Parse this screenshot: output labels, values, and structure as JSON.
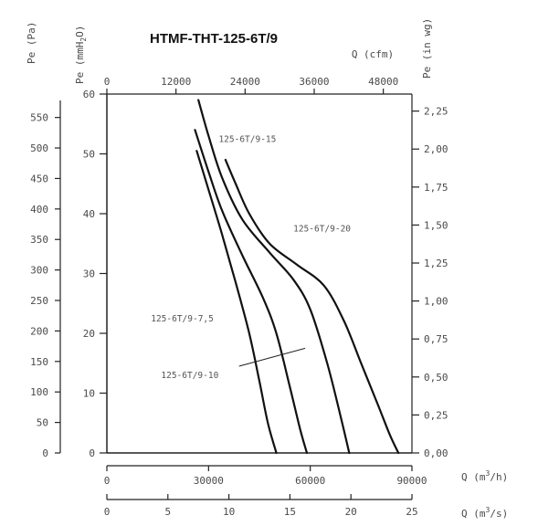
{
  "chart_data": {
    "type": "line",
    "title": "HTMF-THT-125-6T/9",
    "axes": {
      "q_cfm": {
        "label": "Q (cfm)",
        "range": [
          0,
          52972
        ],
        "ticks": [
          0,
          12000,
          24000,
          36000,
          48000
        ],
        "tick_labels": [
          "0",
          "12000",
          "24000",
          "36000",
          "48000"
        ]
      },
      "q_m3h": {
        "label": "Q (m3/h)",
        "label_base": "Q (m",
        "label_sup": "3",
        "label_end": "/h)",
        "range": [
          0,
          90000
        ],
        "ticks": [
          0,
          30000,
          60000,
          90000
        ],
        "tick_labels": [
          "0",
          "30000",
          "60000",
          "90000"
        ]
      },
      "q_m3s": {
        "label": "Q (m3/s)",
        "label_base": "Q (m",
        "label_sup": "3",
        "label_end": "/s)",
        "range": [
          0,
          25
        ],
        "ticks": [
          0,
          5,
          10,
          15,
          20,
          25
        ],
        "tick_labels": [
          "0",
          "5",
          "10",
          "15",
          "20",
          "25"
        ]
      },
      "pe_pa": {
        "label": "Pe (Pa)",
        "range": [
          0,
          588.4
        ],
        "ticks": [
          0,
          50,
          100,
          150,
          200,
          250,
          300,
          350,
          400,
          450,
          500,
          550
        ],
        "tick_labels": [
          "0",
          "50",
          "100",
          "150",
          "200",
          "250",
          "300",
          "350",
          "400",
          "450",
          "500",
          "550"
        ]
      },
      "pe_mmh2o": {
        "label": "Pe (mmH2O)",
        "label_base": "Pe (mmH",
        "label_sub": "2",
        "label_end": "O)",
        "range": [
          0,
          60
        ],
        "ticks": [
          0,
          10,
          20,
          30,
          40,
          50,
          60
        ],
        "tick_labels": [
          "0",
          "10",
          "20",
          "30",
          "40",
          "50",
          "60"
        ]
      },
      "pe_inwg": {
        "label": "Pe (in wg)",
        "range": [
          0,
          2.362
        ],
        "ticks": [
          0,
          0.25,
          0.5,
          0.75,
          1.0,
          1.25,
          1.5,
          1.75,
          2.0,
          2.25
        ],
        "tick_labels": [
          "0,00",
          "0,25",
          "0,50",
          "0,75",
          "1,00",
          "1,25",
          "1,50",
          "1,75",
          "2,00",
          "2,25"
        ]
      }
    },
    "x_unit": "m3/h",
    "y_unit": "mmH2O",
    "series": [
      {
        "name": "125-6T/9-7,5",
        "x": [
          26500,
          30000,
          34000,
          38000,
          42000,
          45000,
          47500,
          50000
        ],
        "y": [
          50.5,
          44,
          36.5,
          28.5,
          20,
          12,
          5,
          0
        ]
      },
      {
        "name": "125-6T/9-10",
        "x": [
          26000,
          30000,
          34000,
          40000,
          46000,
          50000,
          54000,
          57000,
          59000
        ],
        "y": [
          54,
          47,
          40.5,
          33,
          26,
          20,
          11,
          4,
          0
        ]
      },
      {
        "name": "125-6T/9-15",
        "x": [
          27000,
          30000,
          34000,
          40000,
          48000,
          55000,
          60000,
          65000,
          69000,
          71500
        ],
        "y": [
          59,
          53,
          46,
          39,
          33.5,
          29,
          24,
          15,
          6,
          0
        ]
      },
      {
        "name": "125-6T/9-20",
        "x": [
          35000,
          38000,
          42000,
          48000,
          56000,
          64000,
          70000,
          75000,
          80000,
          83500,
          86000
        ],
        "y": [
          49,
          45,
          40,
          35,
          31.5,
          28,
          22,
          15,
          8,
          3,
          0
        ]
      }
    ],
    "series_labels": [
      "125-6T/9-15",
      "125-6T/9-20",
      "125-6T/9-7,5",
      "125-6T/9-10"
    ],
    "grid": false
  }
}
